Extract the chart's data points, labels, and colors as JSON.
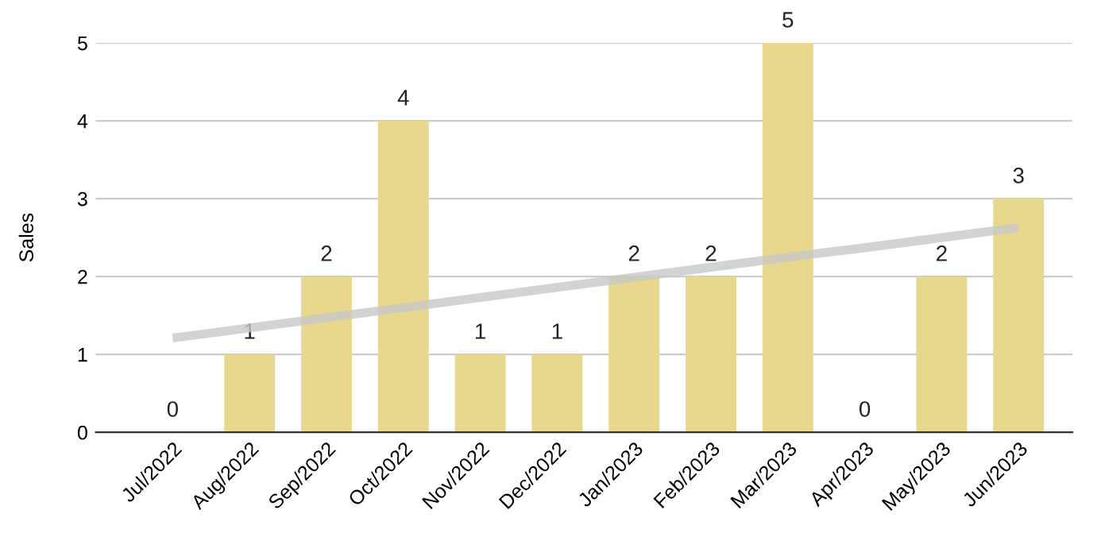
{
  "chart_data": {
    "type": "bar",
    "ylabel": "Sales",
    "categories": [
      "Jul/2022",
      "Aug/2022",
      "Sep/2022",
      "Oct/2022",
      "Nov/2022",
      "Dec/2022",
      "Jan/2023",
      "Feb/2023",
      "Mar/2023",
      "Apr/2023",
      "May/2023",
      "Jun/2023"
    ],
    "series": [
      {
        "color": "#e8d88e",
        "values": [
          0,
          1,
          2,
          4,
          1,
          1,
          2,
          2,
          5,
          0,
          2,
          3
        ],
        "value_labels": [
          "0",
          "1",
          "2",
          "4",
          "1",
          "1",
          "2",
          "2",
          "5",
          "0",
          "2",
          "3"
        ]
      },
      {
        "type": "line",
        "color": "#c8c8c8",
        "values": [
          1.21,
          1.34,
          1.47,
          1.6,
          1.73,
          1.86,
          1.99,
          2.12,
          2.25,
          2.37,
          2.5,
          2.63
        ]
      }
    ],
    "ylim": [
      0,
      5
    ],
    "yticks": [
      0,
      1,
      2,
      3,
      4,
      5
    ],
    "grid": "y",
    "legend": false
  }
}
